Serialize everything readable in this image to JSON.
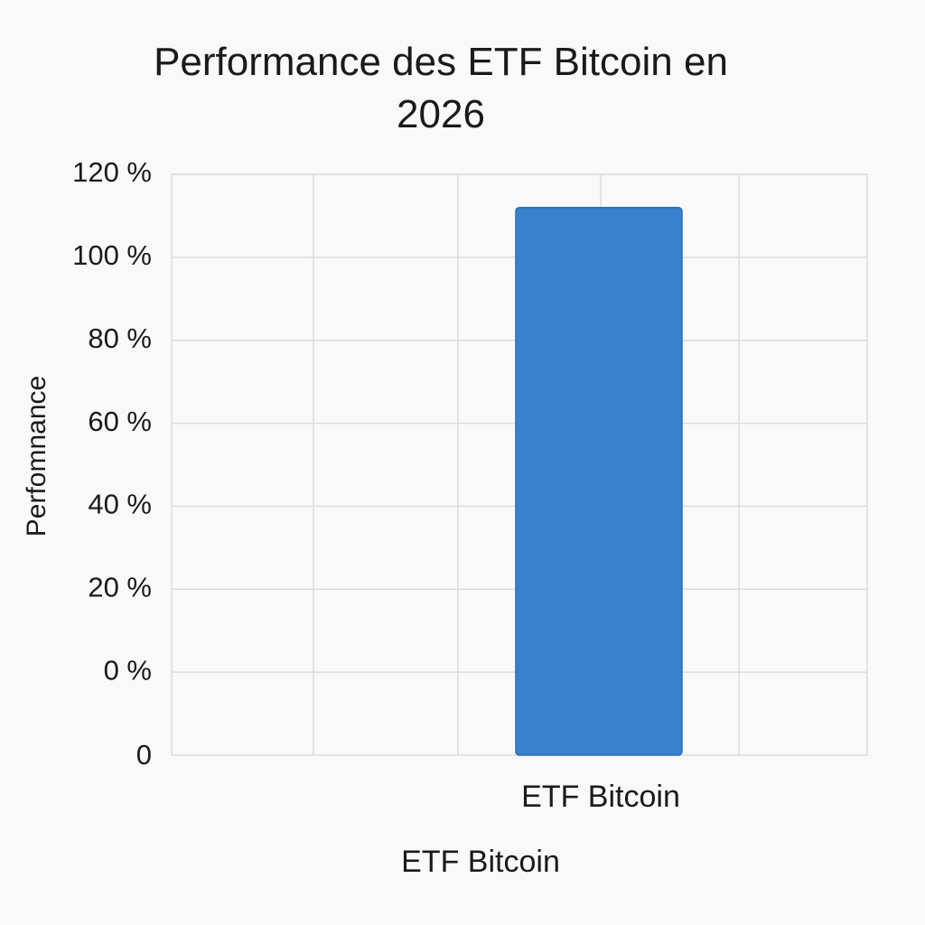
{
  "chart_data": {
    "type": "bar",
    "title": "Performance des ETF Bitcoin en 2026",
    "x_label": "ETF Bitcoin",
    "y_label": "Perfomnance",
    "categories": [
      "ETF Bitcoin"
    ],
    "values": [
      112
    ],
    "color": "#3a80cc",
    "ylim": [
      -20,
      120
    ],
    "yticks": [
      {
        "value": 0,
        "label": "0 %"
      },
      {
        "value": 20,
        "label": "20 %"
      },
      {
        "value": 40,
        "label": "40 %"
      },
      {
        "value": 60,
        "label": "60 %"
      },
      {
        "value": 80,
        "label": "80 %"
      },
      {
        "value": 100,
        "label": "100 %"
      },
      {
        "value": 120,
        "label": "120 %"
      }
    ],
    "baseline_label": "0",
    "grid": true
  }
}
